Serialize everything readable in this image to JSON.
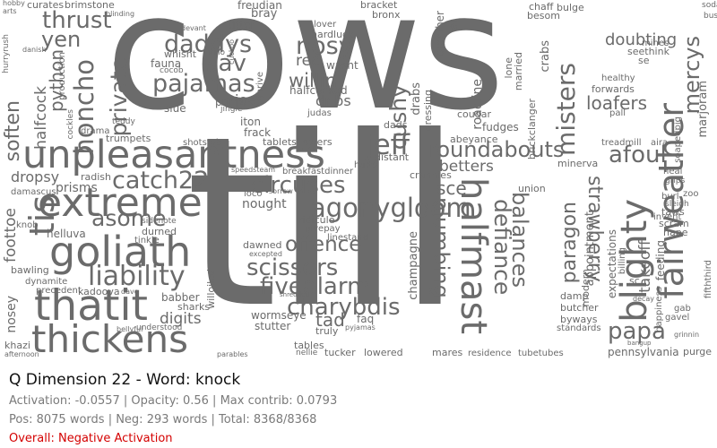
{
  "cloud": {
    "color": "#6b6b6b",
    "words": {
      "cows": "cows",
      "till": "till",
      "unpleasantness": "unpleasantness",
      "extreme": "extreme",
      "goliath": "goliath",
      "thatit": "thatit",
      "thickens": "thickens",
      "liability": "liability",
      "catch22": "catch22",
      "asome": "asome",
      "daddys": "daddys",
      "pajamas": "pajamas",
      "sav": "sav",
      "thrust": "thrust",
      "yen": "yen",
      "honcho": "honcho",
      "private": "private",
      "python": "python",
      "soften": "soften",
      "tis": "tis",
      "nosy": "nosy",
      "willin": "willin",
      "dribs": "dribs",
      "jeff": "jeff",
      "circuses": "circuses",
      "agonygloom": "agonygloom",
      "offence": "offence",
      "scissors": "scissors",
      "fivealarm": "fivealarm",
      "charybdis": "charybdis",
      "tad": "tad",
      "roundabouts": "roundabouts",
      "afoul": "afoul",
      "halfmast": "halfmast",
      "defiance": "defiance",
      "balances": "balances",
      "plumbing": "plumbing",
      "paragon": "paragon",
      "strawberry": "strawberry",
      "papa": "papa",
      "blighty": "blighty",
      "fairweather": "fairweather",
      "mercys": "mercys",
      "doubting": "doubting",
      "loafers": "loafers",
      "misters": "misters",
      "cushy": "cushy",
      "betters": "betters",
      "sce": "sce",
      "halfcock": "halfcock",
      "foottoe": "foottoe",
      "dropsy": "dropsy",
      "prisms": "prisms",
      "helluva": "helluva",
      "kadoova": "kadoova",
      "digits": "digits",
      "babber": "babber",
      "sharks": "sharks",
      "wormseye": "wormseye",
      "stutter": "stutter",
      "truly": "truly",
      "faq": "faq",
      "tables": "tables",
      "nosey": "nosey",
      "khazi": "khazi",
      "bawling": "bawling",
      "dynamite": "dynamite",
      "precedent": "precedent",
      "dawned": "dawned",
      "durned": "durned",
      "tinkle": "tinkle",
      "willoiled": "willoiled",
      "ridicule": "ridicule",
      "givepay": "givepay",
      "linestand": "linestand",
      "nought": "nought",
      "loco": "loco",
      "knob": "knob",
      "faunaforbes": "fauna",
      "whisht": "whisht",
      "slue": "slue",
      "prima": "prima",
      "joes": "joes",
      "iton": "iton",
      "frack": "frack",
      "tabletsflowers": "tabletsflowers",
      "breakfastdinner": "breakfastdinner",
      "trumpets": "trumpets",
      "shotstab": "shotstab",
      "radish": "radish",
      "damascus": "damascus",
      "hardluck": "hardluck",
      "rec": "rec",
      "wasnt": "wasnt",
      "halfcocked": "halfcocked",
      "judas": "judas",
      "lover": "lover",
      "bray": "bray",
      "titter": "titter",
      "freudian": "freudian",
      "bracket": "bracket",
      "bronx": "bronx",
      "bulge": "bulge",
      "chaff": "chaff",
      "besom": "besom",
      "se": "se",
      "seethink": "seethink",
      "mines": "mines",
      "forwards": "forwards",
      "pall": "pall",
      "healthy": "healthy",
      "treadmill": "treadmill",
      "aira": "aira",
      "taws": "taws",
      "nape": "nape",
      "scram": "scram",
      "invent": "invent",
      "billing": "billing",
      "takeoff": "takeoff",
      "feeding": "feeding",
      "sc": "sc",
      "damp": "damp",
      "butcher": "butcher",
      "byways": "byways",
      "standards": "standards",
      "pennsylvania": "pennsylvania",
      "purge": "purge",
      "tubetubes": "tubetubes",
      "residence": "residence",
      "mares": "mares",
      "lowered": "lowered",
      "tucker": "tucker",
      "nellie": "nellie",
      "champagne": "champagne",
      "crannies": "crannies",
      "distant": "distant",
      "hurts": "hurts",
      "fudges": "fudges",
      "abeyance": "abeyance",
      "union": "union",
      "minerva": "minerva",
      "cougar": "cougar",
      "roadline": "roadline",
      "drabs": "drabs",
      "dads": "dads",
      "dressing": "dressing",
      "marjoram": "marjoram",
      "curates": "curates",
      "brimstone": "brimstone",
      "hurryrush": "hurryrush",
      "production": "production",
      "drama": "drama",
      "teddy": "teddy",
      "sidenote": "sidenote",
      "understood": "understood",
      "bellyful": "bellyful",
      "parables": "parables",
      "afternoon": "afternoon",
      "gab": "gab",
      "gavel": "gavel",
      "happiness": "happiness",
      "decay": "decay",
      "zoo": "zoo",
      "heal": "heal",
      "grips": "grips",
      "burl": "burl",
      "sleigh": "sleigh",
      "appointment": "appointment",
      "expectations": "expectations",
      "modern": "modern",
      "brickclanger": "brickclanger",
      "crabs": "crabs",
      "lone": "lone",
      "married": "married",
      "breather": "breather",
      "el": "el",
      "sodas": "soda",
      "bus": "bus",
      "fifththird": "fifththird",
      "soapedpig": "soapedpig",
      "cockles": "cockles",
      "thrive": "thrive",
      "vino": "vino",
      "jingle": "jingle",
      "cocoa": "cocob",
      "arts": "arts",
      "hobby": "hobby",
      "danish": "danish",
      "blinding": "blinding",
      "devant": "devant",
      "cuckoo": "cuckoo",
      "sorrow": "sorrow",
      "speedsteam": "speedsteam",
      "excepted": "excepted",
      "shredded": "shredded",
      "pyjamas": "pyjamas",
      "dave": "dave",
      "gab2": "bangup",
      "grinnin": "grinnin"
    }
  },
  "info": {
    "title": "Q Dimension 22 - Word: knock",
    "activation_line": "Activation: -0.0557 | Opacity: 0.56 | Max contrib: 0.0793",
    "counts_line": "Pos: 8075 words | Neg: 293 words | Total: 8368/8368",
    "overall": "Overall: Negative Activation",
    "overall_color": "#d40000"
  }
}
